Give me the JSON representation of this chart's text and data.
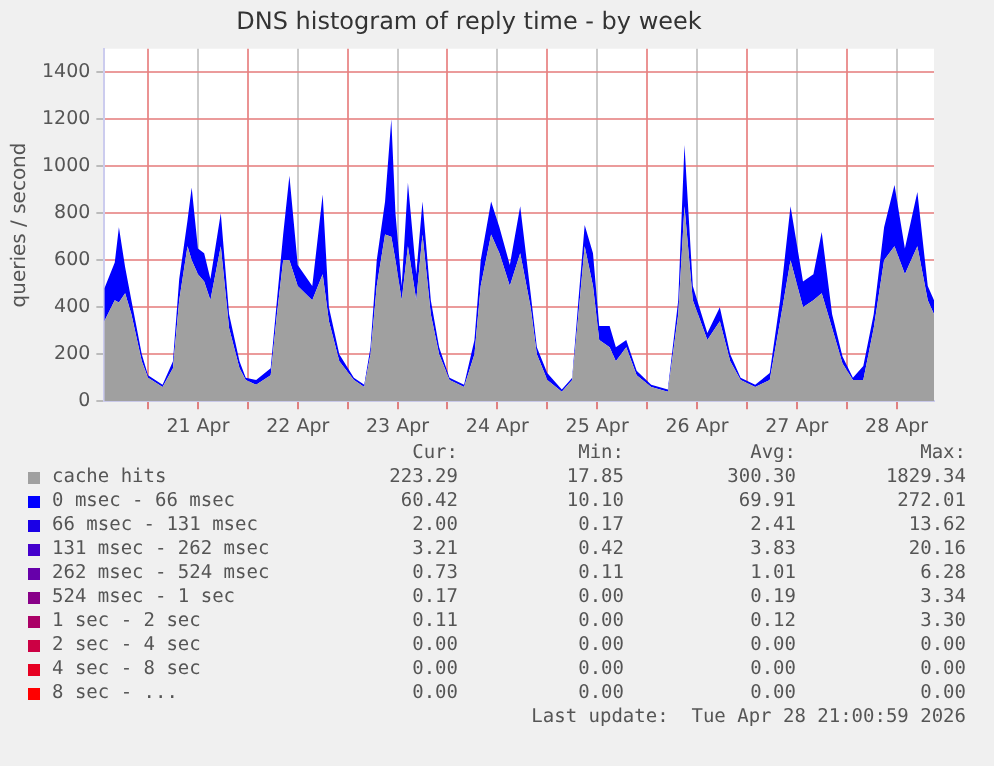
{
  "chart_data": {
    "type": "area",
    "stacked": true,
    "title": "DNS histogram of reply time - by week",
    "ylabel": "queries / second",
    "legend": "bottom",
    "grid": true,
    "xlim": [
      "2026-04-20T13:30",
      "2026-04-28T21:00"
    ],
    "xticks": [
      {
        "value": "2026-04-21T00:00",
        "label": null
      },
      {
        "value": "2026-04-21T12:00",
        "label": "21 Apr"
      },
      {
        "value": "2026-04-22T00:00",
        "label": null
      },
      {
        "value": "2026-04-22T12:00",
        "label": "22 Apr"
      },
      {
        "value": "2026-04-23T00:00",
        "label": null
      },
      {
        "value": "2026-04-23T12:00",
        "label": "23 Apr"
      },
      {
        "value": "2026-04-24T00:00",
        "label": null
      },
      {
        "value": "2026-04-24T12:00",
        "label": "24 Apr"
      },
      {
        "value": "2026-04-25T00:00",
        "label": null
      },
      {
        "value": "2026-04-25T12:00",
        "label": "25 Apr"
      },
      {
        "value": "2026-04-26T00:00",
        "label": null
      },
      {
        "value": "2026-04-26T12:00",
        "label": "26 Apr"
      },
      {
        "value": "2026-04-27T00:00",
        "label": null
      },
      {
        "value": "2026-04-27T12:00",
        "label": "27 Apr"
      },
      {
        "value": "2026-04-28T00:00",
        "label": null
      },
      {
        "value": "2026-04-28T12:00",
        "label": "28 Apr"
      }
    ],
    "ylim": [
      0,
      1500
    ],
    "yticks": [
      0,
      200,
      400,
      600,
      800,
      1000,
      1200,
      1400
    ],
    "x": [
      "2026-04-20T13:30",
      "2026-04-20T16:00",
      "2026-04-20T17:00",
      "2026-04-20T18:30",
      "2026-04-20T20:00",
      "2026-04-20T22:30",
      "2026-04-21T00:00",
      "2026-04-21T03:30",
      "2026-04-21T06:00",
      "2026-04-21T07:30",
      "2026-04-21T09:30",
      "2026-04-21T10:30",
      "2026-04-21T12:00",
      "2026-04-21T13:30",
      "2026-04-21T15:00",
      "2026-04-21T17:30",
      "2026-04-21T19:30",
      "2026-04-21T22:00",
      "2026-04-21T23:30",
      "2026-04-22T02:00",
      "2026-04-22T05:30",
      "2026-04-22T07:00",
      "2026-04-22T08:30",
      "2026-04-22T10:00",
      "2026-04-22T12:00",
      "2026-04-22T15:30",
      "2026-04-22T18:00",
      "2026-04-22T19:30",
      "2026-04-22T22:00",
      "2026-04-23T01:30",
      "2026-04-23T04:00",
      "2026-04-23T05:30",
      "2026-04-23T07:00",
      "2026-04-23T09:00",
      "2026-04-23T10:30",
      "2026-04-23T11:30",
      "2026-04-23T13:00",
      "2026-04-23T14:30",
      "2026-04-23T16:30",
      "2026-04-23T18:00",
      "2026-04-23T20:00",
      "2026-04-23T22:00",
      "2026-04-24T00:30",
      "2026-04-24T04:00",
      "2026-04-24T06:30",
      "2026-04-24T08:00",
      "2026-04-24T10:30",
      "2026-04-24T12:30",
      "2026-04-24T15:00",
      "2026-04-24T17:30",
      "2026-04-24T20:00",
      "2026-04-24T21:30",
      "2026-04-25T00:00",
      "2026-04-25T03:30",
      "2026-04-25T06:00",
      "2026-04-25T07:30",
      "2026-04-25T09:00",
      "2026-04-25T11:00",
      "2026-04-25T12:30",
      "2026-04-25T15:00",
      "2026-04-25T16:30",
      "2026-04-25T19:00",
      "2026-04-25T21:30",
      "2026-04-26T01:00",
      "2026-04-26T05:00",
      "2026-04-26T07:30",
      "2026-04-26T09:00",
      "2026-04-26T11:00",
      "2026-04-26T14:30",
      "2026-04-26T17:30",
      "2026-04-26T20:00",
      "2026-04-26T22:30",
      "2026-04-27T02:00",
      "2026-04-27T05:30",
      "2026-04-27T08:00",
      "2026-04-27T10:30",
      "2026-04-27T13:30",
      "2026-04-27T16:00",
      "2026-04-27T18:00",
      "2026-04-27T20:30",
      "2026-04-27T23:00",
      "2026-04-28T01:30",
      "2026-04-28T04:00",
      "2026-04-28T06:30",
      "2026-04-28T09:00",
      "2026-04-28T11:30",
      "2026-04-28T14:00",
      "2026-04-28T17:00",
      "2026-04-28T19:30",
      "2026-04-28T21:00"
    ],
    "series": [
      {
        "name": "cache hits",
        "color": "#a0a0a0",
        "values": [
          340,
          430,
          420,
          460,
          370,
          170,
          100,
          60,
          140,
          430,
          660,
          600,
          540,
          510,
          430,
          660,
          310,
          140,
          90,
          70,
          110,
          370,
          600,
          600,
          490,
          430,
          540,
          340,
          170,
          90,
          60,
          200,
          490,
          710,
          700,
          600,
          430,
          660,
          430,
          710,
          370,
          200,
          90,
          60,
          200,
          490,
          710,
          630,
          490,
          630,
          400,
          200,
          90,
          40,
          90,
          370,
          660,
          490,
          260,
          230,
          170,
          230,
          110,
          60,
          40,
          370,
          830,
          430,
          260,
          340,
          170,
          90,
          60,
          90,
          340,
          600,
          400,
          430,
          460,
          310,
          160,
          90,
          90,
          310,
          600,
          660,
          540,
          660,
          430,
          370
        ]
      },
      {
        "name": "0 msec - 66 msec",
        "color": "#0000ff",
        "values": [
          140,
          160,
          320,
          110,
          60,
          30,
          10,
          10,
          30,
          90,
          110,
          310,
          110,
          120,
          90,
          140,
          60,
          30,
          10,
          20,
          30,
          60,
          110,
          360,
          90,
          60,
          340,
          60,
          30,
          10,
          10,
          30,
          110,
          140,
          500,
          200,
          60,
          270,
          110,
          140,
          60,
          30,
          10,
          10,
          60,
          110,
          140,
          110,
          90,
          200,
          60,
          30,
          30,
          10,
          10,
          60,
          90,
          140,
          60,
          90,
          60,
          30,
          20,
          10,
          10,
          60,
          260,
          60,
          30,
          60,
          30,
          10,
          10,
          30,
          90,
          230,
          110,
          110,
          260,
          60,
          30,
          10,
          60,
          60,
          140,
          260,
          110,
          230,
          60,
          60
        ]
      },
      {
        "name": "66 msec - 131 msec",
        "color": "#1a00e6",
        "values": [
          null,
          null,
          null,
          null,
          null,
          null,
          null,
          null,
          null,
          null,
          null,
          null,
          null,
          null,
          null,
          null,
          null,
          null,
          null,
          null,
          null,
          null,
          null,
          null,
          null,
          null,
          null,
          null,
          null,
          null,
          null,
          null,
          null,
          null,
          null,
          null,
          null,
          null,
          null,
          null,
          null,
          null,
          null,
          null,
          null,
          null,
          null,
          null,
          null,
          null,
          null,
          null,
          null,
          null,
          null,
          null,
          null,
          null,
          null,
          null,
          null,
          null,
          null,
          null,
          null,
          null,
          null,
          null,
          null,
          null,
          null,
          null,
          null,
          null,
          null,
          null,
          null,
          null,
          null,
          null,
          null,
          null,
          null,
          null,
          null,
          null,
          null,
          null,
          null,
          null
        ]
      },
      {
        "name": "131 msec - 262 msec",
        "color": "#4400cc",
        "values": [
          null,
          null,
          null,
          null,
          null,
          null,
          null,
          null,
          null,
          null,
          null,
          null,
          null,
          null,
          null,
          null,
          null,
          null,
          null,
          null,
          null,
          null,
          null,
          null,
          null,
          null,
          null,
          null,
          null,
          null,
          null,
          null,
          null,
          null,
          null,
          null,
          null,
          null,
          null,
          null,
          null,
          null,
          null,
          null,
          null,
          null,
          null,
          null,
          null,
          null,
          null,
          null,
          null,
          null,
          null,
          null,
          null,
          null,
          null,
          null,
          null,
          null,
          null,
          null,
          null,
          null,
          null,
          null,
          null,
          null,
          null,
          null,
          null,
          null,
          null,
          null,
          null,
          null,
          null,
          null,
          null,
          null,
          null,
          null,
          null,
          null,
          null,
          null,
          null,
          null
        ]
      },
      {
        "name": "262 msec - 524 msec",
        "color": "#6600aa",
        "values": [
          null,
          null,
          null,
          null,
          null,
          null,
          null,
          null,
          null,
          null,
          null,
          null,
          null,
          null,
          null,
          null,
          null,
          null,
          null,
          null,
          null,
          null,
          null,
          null,
          null,
          null,
          null,
          null,
          null,
          null,
          null,
          null,
          null,
          null,
          null,
          null,
          null,
          null,
          null,
          null,
          null,
          null,
          null,
          null,
          null,
          null,
          null,
          null,
          null,
          null,
          null,
          null,
          null,
          null,
          null,
          null,
          null,
          null,
          null,
          null,
          null,
          null,
          null,
          null,
          null,
          null,
          null,
          null,
          null,
          null,
          null,
          null,
          null,
          null,
          null,
          null,
          null,
          null,
          null,
          null,
          null,
          null,
          null,
          null,
          null,
          null,
          null,
          null,
          null,
          null
        ]
      },
      {
        "name": "524 msec - 1 sec",
        "color": "#880088",
        "values": [
          null,
          null,
          null,
          null,
          null,
          null,
          null,
          null,
          null,
          null,
          null,
          null,
          null,
          null,
          null,
          null,
          null,
          null,
          null,
          null,
          null,
          null,
          null,
          null,
          null,
          null,
          null,
          null,
          null,
          null,
          null,
          null,
          null,
          null,
          null,
          null,
          null,
          null,
          null,
          null,
          null,
          null,
          null,
          null,
          null,
          null,
          null,
          null,
          null,
          null,
          null,
          null,
          null,
          null,
          null,
          null,
          null,
          null,
          null,
          null,
          null,
          null,
          null,
          null,
          null,
          null,
          null,
          null,
          null,
          null,
          null,
          null,
          null,
          null,
          null,
          null,
          null,
          null,
          null,
          null,
          null,
          null,
          null,
          null,
          null,
          null,
          null,
          null,
          null,
          null
        ]
      },
      {
        "name": "1 sec - 2 sec",
        "color": "#aa0066",
        "values": [
          null,
          null,
          null,
          null,
          null,
          null,
          null,
          null,
          null,
          null,
          null,
          null,
          null,
          null,
          null,
          null,
          null,
          null,
          null,
          null,
          null,
          null,
          null,
          null,
          null,
          null,
          null,
          null,
          null,
          null,
          null,
          null,
          null,
          null,
          null,
          null,
          null,
          null,
          null,
          null,
          null,
          null,
          null,
          null,
          null,
          null,
          null,
          null,
          null,
          null,
          null,
          null,
          null,
          null,
          null,
          null,
          null,
          null,
          null,
          null,
          null,
          null,
          null,
          null,
          null,
          null,
          null,
          null,
          null,
          null,
          null,
          null,
          null,
          null,
          null,
          null,
          null,
          null,
          null,
          null,
          null,
          null,
          null,
          null,
          null,
          null,
          null,
          null,
          null,
          null
        ]
      },
      {
        "name": "2 sec - 4 sec",
        "color": "#cc0044",
        "values": [
          null,
          null,
          null,
          null,
          null,
          null,
          null,
          null,
          null,
          null,
          null,
          null,
          null,
          null,
          null,
          null,
          null,
          null,
          null,
          null,
          null,
          null,
          null,
          null,
          null,
          null,
          null,
          null,
          null,
          null,
          null,
          null,
          null,
          null,
          null,
          null,
          null,
          null,
          null,
          null,
          null,
          null,
          null,
          null,
          null,
          null,
          null,
          null,
          null,
          null,
          null,
          null,
          null,
          null,
          null,
          null,
          null,
          null,
          null,
          null,
          null,
          null,
          null,
          null,
          null,
          null,
          null,
          null,
          null,
          null,
          null,
          null,
          null,
          null,
          null,
          null,
          null,
          null,
          null,
          null,
          null,
          null,
          null,
          null,
          null,
          null,
          null,
          null,
          null,
          null
        ]
      },
      {
        "name": "4 sec - 8 sec",
        "color": "#e60022",
        "values": [
          null,
          null,
          null,
          null,
          null,
          null,
          null,
          null,
          null,
          null,
          null,
          null,
          null,
          null,
          null,
          null,
          null,
          null,
          null,
          null,
          null,
          null,
          null,
          null,
          null,
          null,
          null,
          null,
          null,
          null,
          null,
          null,
          null,
          null,
          null,
          null,
          null,
          null,
          null,
          null,
          null,
          null,
          null,
          null,
          null,
          null,
          null,
          null,
          null,
          null,
          null,
          null,
          null,
          null,
          null,
          null,
          null,
          null,
          null,
          null,
          null,
          null,
          null,
          null,
          null,
          null,
          null,
          null,
          null,
          null,
          null,
          null,
          null,
          null,
          null,
          null,
          null,
          null,
          null,
          null,
          null,
          null,
          null,
          null,
          null,
          null,
          null,
          null,
          null,
          null
        ]
      },
      {
        "name": "8 sec - ...",
        "color": "#ff0000",
        "values": [
          null,
          null,
          null,
          null,
          null,
          null,
          null,
          null,
          null,
          null,
          null,
          null,
          null,
          null,
          null,
          null,
          null,
          null,
          null,
          null,
          null,
          null,
          null,
          null,
          null,
          null,
          null,
          null,
          null,
          null,
          null,
          null,
          null,
          null,
          null,
          null,
          null,
          null,
          null,
          null,
          null,
          null,
          null,
          null,
          null,
          null,
          null,
          null,
          null,
          null,
          null,
          null,
          null,
          null,
          null,
          null,
          null,
          null,
          null,
          null,
          null,
          null,
          null,
          null,
          null,
          null,
          null,
          null,
          null,
          null,
          null,
          null,
          null,
          null,
          null,
          null,
          null,
          null,
          null,
          null,
          null,
          null,
          null,
          null,
          null,
          null,
          null,
          null,
          null,
          null
        ]
      }
    ],
    "annotations": [
      "Cur:",
      "Min:",
      "Avg:",
      "Max:",
      "223.29",
      "17.85",
      "300.30",
      "1829.34",
      "60.42",
      "10.10",
      "69.91",
      "272.01",
      "2.00",
      "0.17",
      "2.41",
      "13.62",
      "3.21",
      "0.42",
      "3.83",
      "20.16",
      "0.73",
      "0.11",
      "1.01",
      "6.28",
      "0.17",
      "0.00",
      "0.19",
      "3.34",
      "0.11",
      "0.00",
      "0.12",
      "3.30",
      "0.00",
      "0.00",
      "0.00",
      "0.00",
      "0.00",
      "0.00",
      "0.00",
      "0.00",
      "0.00",
      "0.00",
      "0.00",
      "0.00",
      "Last update:  Tue Apr 28 21:00:59 2026"
    ]
  }
}
